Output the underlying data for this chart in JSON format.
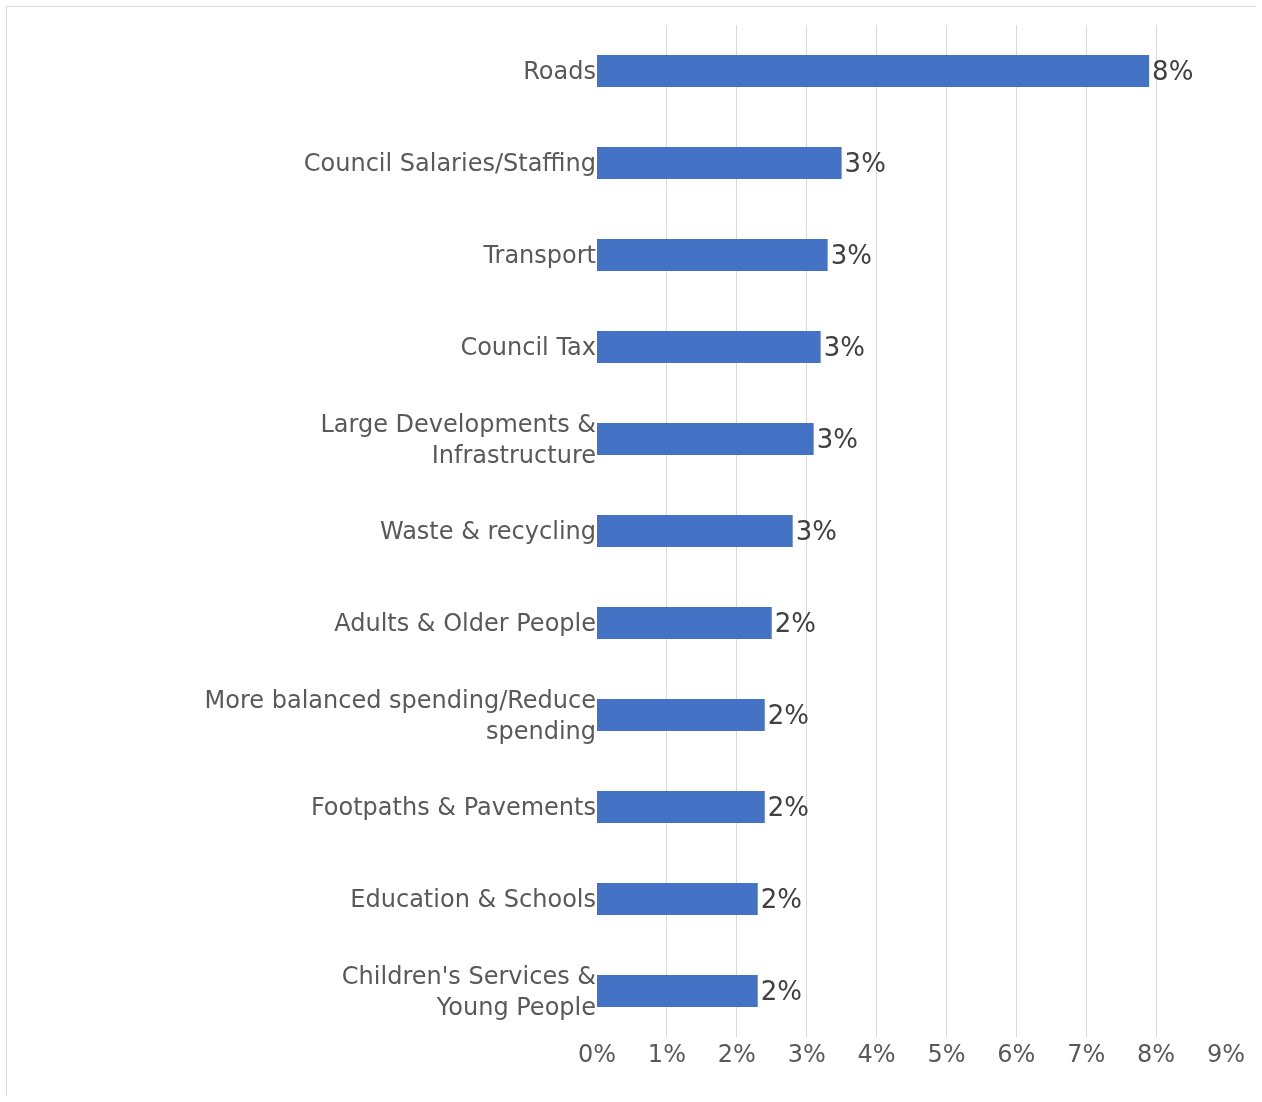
{
  "chart_data": {
    "type": "bar",
    "orientation": "horizontal",
    "categories": [
      "Roads",
      "Council Salaries/Staffing",
      "Transport",
      "Council Tax",
      "Large Developments & Infrastructure",
      "Waste & recycling",
      "Adults & Older People",
      "More balanced spending/Reduce spending",
      "Footpaths & Pavements",
      "Education & Schools",
      "Children's Services & Young People"
    ],
    "values": [
      7.9,
      3.5,
      3.3,
      3.2,
      3.1,
      2.8,
      2.5,
      2.4,
      2.4,
      2.3,
      2.3
    ],
    "value_labels": [
      "8%",
      "3%",
      "3%",
      "3%",
      "3%",
      "3%",
      "2%",
      "2%",
      "2%",
      "2%",
      "2%"
    ],
    "color": "#4472c4",
    "xlim": [
      0,
      9
    ],
    "xticks": [
      {
        "value": 0,
        "label": "0%"
      },
      {
        "value": 1,
        "label": "1%"
      },
      {
        "value": 2,
        "label": "2%"
      },
      {
        "value": 3,
        "label": "3%"
      },
      {
        "value": 4,
        "label": "4%"
      },
      {
        "value": 5,
        "label": "5%"
      },
      {
        "value": 6,
        "label": "6%"
      },
      {
        "value": 7,
        "label": "7%"
      },
      {
        "value": 8,
        "label": "8%"
      },
      {
        "value": 9,
        "label": "9%"
      }
    ],
    "grid": "x"
  }
}
